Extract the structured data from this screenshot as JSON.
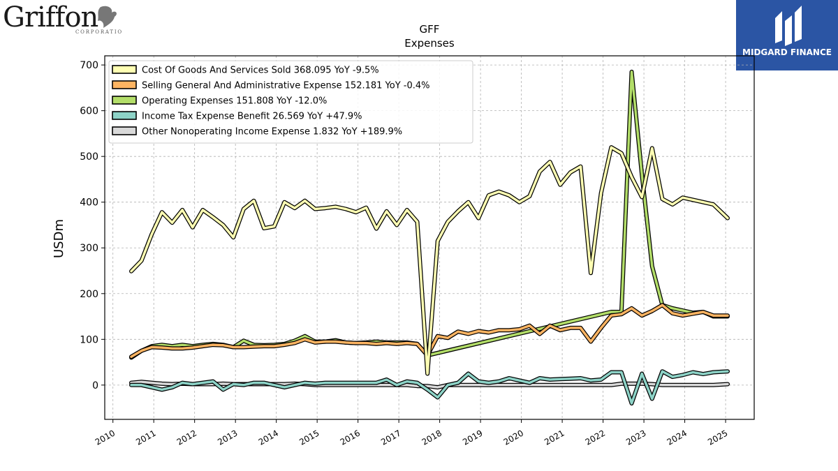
{
  "brand": {
    "left_logo_text": "Griffon",
    "left_logo_subtext": "CORPORATION",
    "right_logo_text": "MIDGARD FINANCE",
    "right_logo_color": "#2b55a4"
  },
  "chart_data": {
    "type": "line",
    "title": "GFF",
    "subtitle": "Expenses",
    "xlabel": "",
    "ylabel": "USDm",
    "ylim": [
      -75,
      720
    ],
    "yticks": [
      0,
      100,
      200,
      300,
      400,
      500,
      600,
      700
    ],
    "xlim": [
      2009.8,
      2025.7
    ],
    "xticks": [
      "2010",
      "2011",
      "2012",
      "2013",
      "2014",
      "2015",
      "2016",
      "2017",
      "2018",
      "2019",
      "2020",
      "2021",
      "2022",
      "2023",
      "2024",
      "2025"
    ],
    "grid": true,
    "legend_position": "top-left",
    "series": [
      {
        "name": "Cost Of Goods And Services Sold  368.095 YoY -9.5%",
        "color": "#ffffb3",
        "x": [
          2010.45,
          2010.7,
          2010.95,
          2011.2,
          2011.45,
          2011.7,
          2011.95,
          2012.2,
          2012.45,
          2012.7,
          2012.95,
          2013.2,
          2013.45,
          2013.7,
          2013.95,
          2014.2,
          2014.45,
          2014.7,
          2014.95,
          2015.2,
          2015.45,
          2015.7,
          2015.95,
          2016.2,
          2016.45,
          2016.7,
          2016.95,
          2017.2,
          2017.45,
          2017.7,
          2017.95,
          2018.2,
          2018.45,
          2018.7,
          2018.95,
          2019.2,
          2019.45,
          2019.7,
          2019.95,
          2020.2,
          2020.45,
          2020.7,
          2020.95,
          2021.2,
          2021.45,
          2021.7,
          2021.95,
          2022.2,
          2022.45,
          2022.7,
          2022.95,
          2023.2,
          2023.45,
          2023.7,
          2023.95,
          2024.2,
          2024.45,
          2024.7,
          2025.05
        ],
        "values": [
          249,
          272,
          330,
          378,
          355,
          383,
          345,
          383,
          367,
          350,
          323,
          385,
          403,
          343,
          347,
          400,
          387,
          403,
          385,
          387,
          390,
          385,
          378,
          388,
          342,
          380,
          350,
          383,
          357,
          25,
          315,
          357,
          380,
          400,
          365,
          415,
          423,
          415,
          400,
          413,
          467,
          488,
          438,
          465,
          478,
          245,
          420,
          520,
          507,
          455,
          411,
          518,
          407,
          395,
          410,
          405,
          400,
          395,
          365
        ]
      },
      {
        "name": "Selling General And Administrative Expense  152.181 YoY -0.4%",
        "color": "#fdb462",
        "x": [
          2010.45,
          2010.7,
          2010.95,
          2011.2,
          2011.45,
          2011.7,
          2011.95,
          2012.2,
          2012.45,
          2012.7,
          2012.95,
          2013.2,
          2013.45,
          2013.7,
          2013.95,
          2014.2,
          2014.45,
          2014.7,
          2014.95,
          2015.2,
          2015.45,
          2015.7,
          2015.95,
          2016.2,
          2016.45,
          2016.7,
          2016.95,
          2017.2,
          2017.45,
          2017.7,
          2017.95,
          2018.2,
          2018.45,
          2018.7,
          2018.95,
          2019.2,
          2019.45,
          2019.7,
          2019.95,
          2020.2,
          2020.45,
          2020.7,
          2020.95,
          2021.2,
          2021.45,
          2021.7,
          2021.95,
          2022.2,
          2022.45,
          2022.7,
          2022.95,
          2023.2,
          2023.45,
          2023.7,
          2023.95,
          2024.2,
          2024.45,
          2024.7,
          2025.05
        ],
        "values": [
          62,
          75,
          83,
          82,
          80,
          80,
          82,
          85,
          88,
          87,
          83,
          83,
          84,
          85,
          85,
          88,
          92,
          100,
          93,
          95,
          95,
          93,
          92,
          92,
          90,
          92,
          90,
          92,
          90,
          65,
          107,
          103,
          117,
          112,
          118,
          115,
          120,
          120,
          122,
          130,
          112,
          130,
          120,
          125,
          125,
          95,
          125,
          152,
          155,
          168,
          152,
          162,
          175,
          157,
          152,
          156,
          160,
          152,
          152
        ]
      },
      {
        "name": "Operating Expenses  151.808 YoY -12.0%",
        "color": "#b3de69",
        "x": [
          2010.45,
          2010.7,
          2010.95,
          2011.2,
          2011.45,
          2011.7,
          2011.95,
          2012.2,
          2012.45,
          2012.7,
          2012.95,
          2013.2,
          2013.45,
          2013.7,
          2013.95,
          2014.2,
          2014.45,
          2014.7,
          2014.95,
          2015.2,
          2015.45,
          2015.7,
          2015.95,
          2016.2,
          2016.45,
          2016.7,
          2016.95,
          2017.2,
          2017.45,
          2017.7,
          2022.2,
          2022.45,
          2022.7,
          2022.95,
          2023.2,
          2023.45,
          2023.7,
          2023.95,
          2024.2,
          2024.45,
          2024.7,
          2025.05
        ],
        "values": [
          60,
          75,
          85,
          88,
          85,
          88,
          85,
          88,
          90,
          88,
          83,
          97,
          88,
          87,
          88,
          90,
          97,
          107,
          95,
          95,
          98,
          93,
          92,
          93,
          95,
          93,
          93,
          93,
          90,
          65,
          160,
          160,
          685,
          460,
          260,
          175,
          168,
          163,
          158,
          160,
          150,
          150
        ]
      },
      {
        "name": "Income Tax Expense Benefit  26.569 YoY +47.9%",
        "color": "#8dd3c7",
        "x": [
          2010.45,
          2010.7,
          2010.95,
          2011.2,
          2011.45,
          2011.7,
          2011.95,
          2012.2,
          2012.45,
          2012.7,
          2012.95,
          2013.2,
          2013.45,
          2013.7,
          2013.95,
          2014.2,
          2014.45,
          2014.7,
          2014.95,
          2015.2,
          2015.45,
          2015.7,
          2015.95,
          2016.2,
          2016.45,
          2016.7,
          2016.95,
          2017.2,
          2017.45,
          2017.7,
          2017.95,
          2018.2,
          2018.45,
          2018.7,
          2018.95,
          2019.2,
          2019.45,
          2019.7,
          2019.95,
          2020.2,
          2020.45,
          2020.7,
          2020.95,
          2021.2,
          2021.45,
          2021.7,
          2021.95,
          2022.2,
          2022.45,
          2022.7,
          2022.95,
          2023.2,
          2023.45,
          2023.7,
          2023.95,
          2024.2,
          2024.45,
          2024.7,
          2025.05
        ],
        "values": [
          0,
          0,
          -5,
          -10,
          -5,
          5,
          2,
          5,
          8,
          -10,
          2,
          0,
          5,
          5,
          0,
          -5,
          0,
          5,
          3,
          5,
          5,
          5,
          5,
          5,
          5,
          12,
          0,
          8,
          5,
          -10,
          -27,
          0,
          5,
          25,
          8,
          5,
          8,
          15,
          10,
          5,
          15,
          12,
          13,
          14,
          15,
          10,
          12,
          28,
          28,
          -40,
          25,
          -30,
          30,
          18,
          22,
          28,
          24,
          28,
          30
        ]
      },
      {
        "name": "Other Nonoperating Income Expense  1.832 YoY +189.9%",
        "color": "#d9d9d9",
        "x": [
          2010.45,
          2010.7,
          2010.95,
          2011.2,
          2011.45,
          2011.7,
          2011.95,
          2012.2,
          2012.45,
          2012.7,
          2012.95,
          2013.2,
          2013.45,
          2013.7,
          2013.95,
          2014.2,
          2014.45,
          2014.7,
          2014.95,
          2015.2,
          2015.45,
          2015.7,
          2015.95,
          2016.2,
          2016.45,
          2016.7,
          2016.95,
          2017.2,
          2017.45,
          2017.7,
          2017.95,
          2018.2,
          2018.45,
          2018.7,
          2018.95,
          2019.2,
          2019.45,
          2019.7,
          2019.95,
          2020.2,
          2020.45,
          2020.7,
          2020.95,
          2021.2,
          2021.45,
          2021.7,
          2021.95,
          2022.2,
          2022.45,
          2022.7,
          2022.95,
          2023.2,
          2023.45,
          2023.7,
          2023.95,
          2024.2,
          2024.45,
          2024.7,
          2025.05
        ],
        "values": [
          5,
          7,
          5,
          3,
          2,
          3,
          2,
          2,
          2,
          3,
          2,
          2,
          2,
          2,
          2,
          2,
          3,
          2,
          0,
          0,
          0,
          0,
          0,
          0,
          0,
          0,
          0,
          0,
          -2,
          -2,
          -5,
          0,
          0,
          0,
          0,
          0,
          0,
          0,
          0,
          0,
          0,
          0,
          0,
          0,
          0,
          0,
          0,
          0,
          3,
          3,
          3,
          2,
          0,
          0,
          0,
          0,
          0,
          0,
          2
        ]
      }
    ]
  }
}
